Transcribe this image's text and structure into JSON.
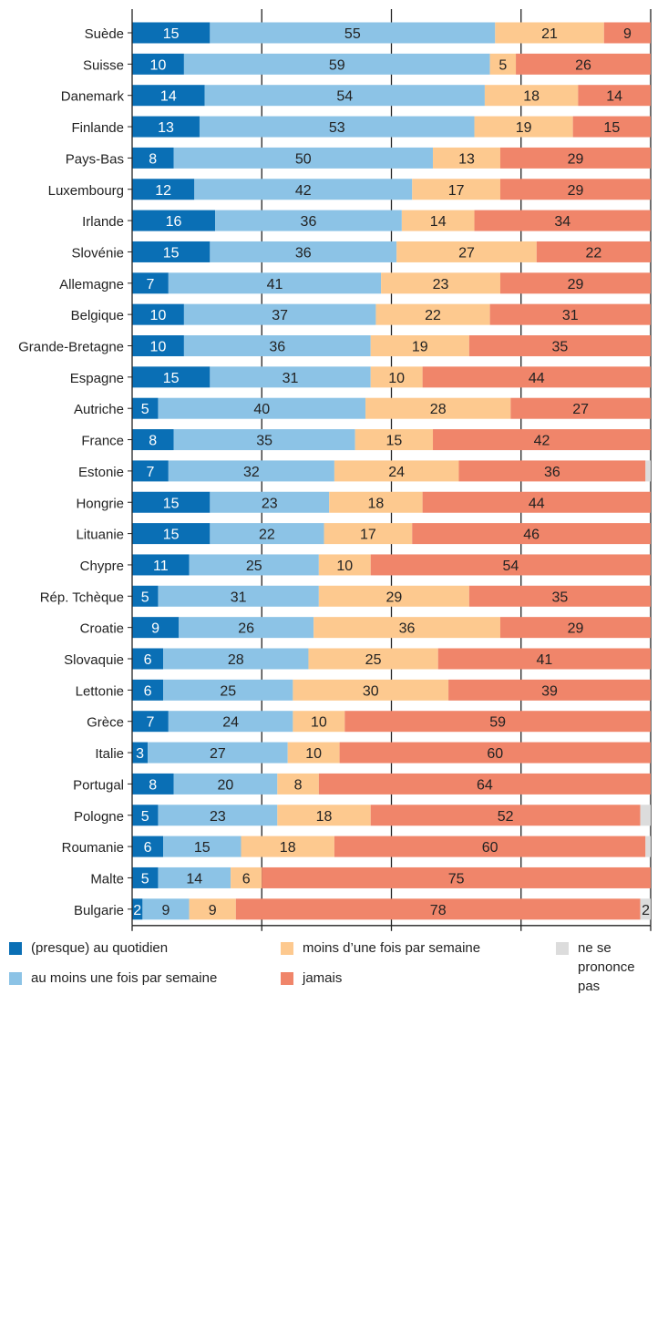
{
  "chart_data": {
    "type": "bar",
    "orientation": "horizontal",
    "stacked": true,
    "title": "",
    "xlabel": "",
    "ylabel": "",
    "xlim": [
      0,
      100
    ],
    "xticks": [
      0,
      25,
      50,
      75,
      100
    ],
    "grid": true,
    "legend_position": "bottom",
    "categories": [
      "Suède",
      "Suisse",
      "Danemark",
      "Finlande",
      "Pays-Bas",
      "Luxembourg",
      "Irlande",
      "Slovénie",
      "Allemagne",
      "Belgique",
      "Grande-Bretagne",
      "Espagne",
      "Autriche",
      "France",
      "Estonie",
      "Hongrie",
      "Lituanie",
      "Chypre",
      "Rép. Tchèque",
      "Croatie",
      "Slovaquie",
      "Lettonie",
      "Grèce",
      "Italie",
      "Portugal",
      "Pologne",
      "Roumanie",
      "Malte",
      "Bulgarie"
    ],
    "series": [
      {
        "name": "(presque) au quotidien",
        "color": "#0a6fb5",
        "values": [
          15,
          10,
          14,
          13,
          8,
          12,
          16,
          15,
          7,
          10,
          10,
          15,
          5,
          8,
          7,
          15,
          15,
          11,
          5,
          9,
          6,
          6,
          7,
          3,
          8,
          5,
          6,
          5,
          2
        ]
      },
      {
        "name": "au moins une fois par semaine",
        "color": "#8cc3e6",
        "values": [
          55,
          59,
          54,
          53,
          50,
          42,
          36,
          36,
          41,
          37,
          36,
          31,
          40,
          35,
          32,
          23,
          22,
          25,
          31,
          26,
          28,
          25,
          24,
          27,
          20,
          23,
          15,
          14,
          9
        ]
      },
      {
        "name": "moins d’une fois par semaine",
        "color": "#fdc98f",
        "values": [
          21,
          5,
          18,
          19,
          13,
          17,
          14,
          27,
          23,
          22,
          19,
          10,
          28,
          15,
          24,
          18,
          17,
          10,
          29,
          36,
          25,
          30,
          10,
          10,
          8,
          18,
          18,
          6,
          9
        ]
      },
      {
        "name": "jamais",
        "color": "#f0856a",
        "values": [
          9,
          26,
          14,
          15,
          29,
          29,
          34,
          22,
          29,
          31,
          35,
          44,
          27,
          42,
          36,
          44,
          46,
          54,
          35,
          29,
          41,
          39,
          59,
          60,
          64,
          52,
          60,
          75,
          78
        ]
      },
      {
        "name": "ne se prononce pas",
        "color": "#dcdcdc",
        "values": [
          0,
          0,
          0,
          0,
          0,
          0,
          0,
          0,
          0,
          0,
          0,
          0,
          0,
          0,
          1,
          0,
          0,
          0,
          0,
          0,
          0,
          0,
          0,
          0,
          0,
          2,
          1,
          0,
          2
        ]
      }
    ],
    "label_series_indices": [
      0,
      1,
      2,
      3
    ],
    "label_extra": [
      {
        "category": "Bulgarie",
        "series": 4,
        "value": 2
      }
    ]
  }
}
